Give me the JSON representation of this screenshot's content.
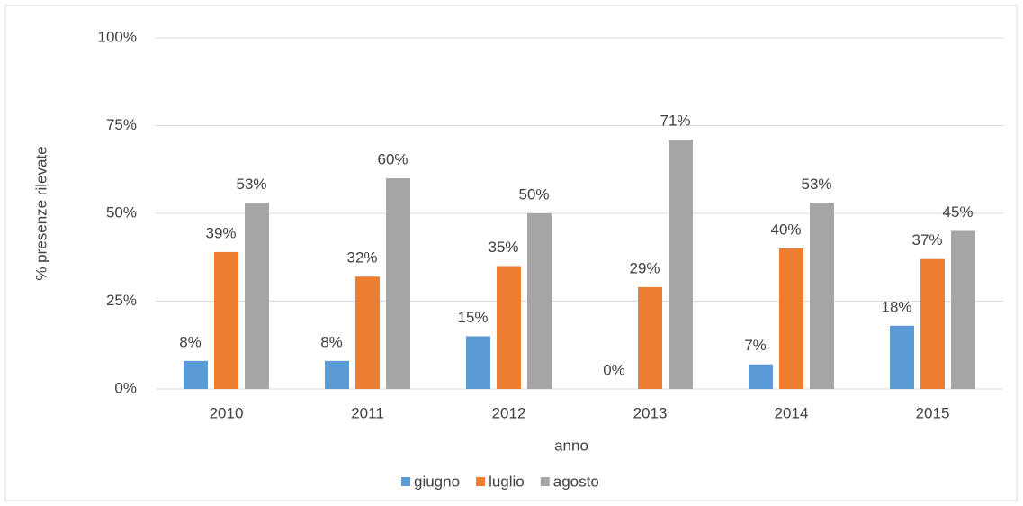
{
  "chart_data": {
    "type": "bar",
    "x_label": "anno",
    "y_label": "% presenze rilevate",
    "categories": [
      "2010",
      "2011",
      "2012",
      "2013",
      "2014",
      "2015"
    ],
    "series": [
      {
        "name": "giugno",
        "color": "#5b9bd5",
        "values": [
          8,
          8,
          15,
          0,
          7,
          18
        ],
        "value_labels": [
          "8%",
          "8%",
          "15%",
          "0%",
          "7%",
          "18%"
        ]
      },
      {
        "name": "luglio",
        "color": "#ed7d31",
        "values": [
          39,
          32,
          35,
          29,
          40,
          37
        ],
        "value_labels": [
          "39%",
          "32%",
          "35%",
          "29%",
          "40%",
          "37%"
        ]
      },
      {
        "name": "agosto",
        "color": "#a5a5a5",
        "values": [
          53,
          60,
          50,
          71,
          53,
          45
        ],
        "value_labels": [
          "53%",
          "60%",
          "50%",
          "71%",
          "53%",
          "45%"
        ]
      }
    ],
    "ylim": [
      0,
      100
    ],
    "yticks": [
      {
        "value": 0,
        "label": "0%"
      },
      {
        "value": 25,
        "label": "25%"
      },
      {
        "value": 50,
        "label": "50%"
      },
      {
        "value": 75,
        "label": "75%"
      },
      {
        "value": 100,
        "label": "100%"
      }
    ],
    "grid": true,
    "legend": "bottom"
  }
}
